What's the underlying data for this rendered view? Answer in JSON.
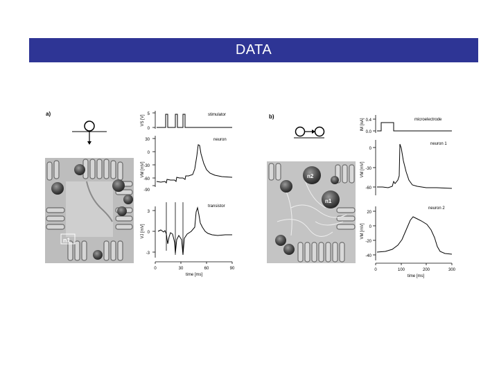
{
  "slide": {
    "title": "DATA",
    "title_bar_color": "#2e3595"
  },
  "panel_a": {
    "label": "a)",
    "photo_label": "n1",
    "plots": [
      {
        "label": "stimulator",
        "ylabel": "VS [V]",
        "yticks": [
          "5",
          "0"
        ]
      },
      {
        "label": "neuron",
        "ylabel": "VM [mV]",
        "yticks": [
          "30",
          "0",
          "-30",
          "-60",
          "-90"
        ]
      },
      {
        "label": "transistor",
        "ylabel": "VJ [mV]",
        "yticks": [
          "3",
          "0",
          "-3"
        ]
      }
    ],
    "xticks": [
      "0",
      "30",
      "60",
      "90"
    ],
    "xlabel": "time [ms]"
  },
  "panel_b": {
    "label": "b)",
    "photo_labels": [
      "n2",
      "n1"
    ],
    "plots": [
      {
        "label": "microelectrode",
        "ylabel": "IM [nA]",
        "yticks": [
          "0.4",
          "0.0"
        ]
      },
      {
        "label": "neuron 1",
        "ylabel": "VM [mV]",
        "yticks": [
          "0",
          "-30",
          "-60"
        ]
      },
      {
        "label": "neuron 2",
        "ylabel": "VM [mV]",
        "yticks": [
          "20",
          "0",
          "-20",
          "-40"
        ]
      }
    ],
    "xticks": [
      "0",
      "100",
      "200",
      "300"
    ],
    "xlabel": "time [ms]"
  }
}
